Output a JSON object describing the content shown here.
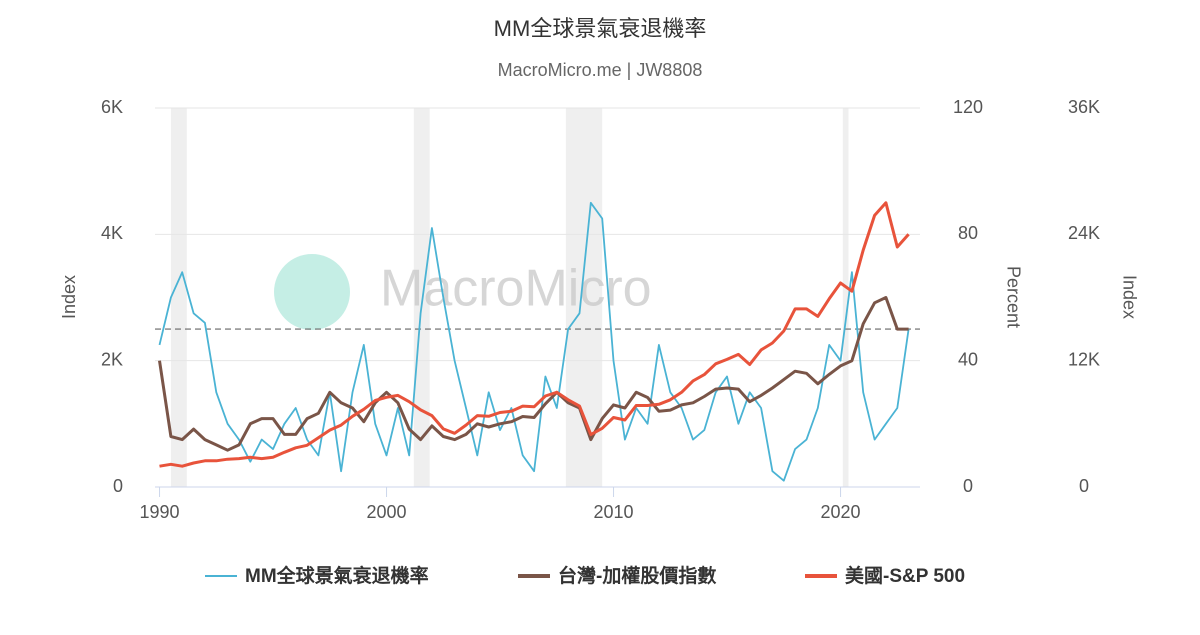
{
  "chart_data": {
    "type": "line",
    "title": "MM全球景氣衰退機率",
    "subtitle": "MacroMicro.me | JW8808",
    "watermark": "MacroMicro",
    "y_label": "Index",
    "y2_label": "Percent",
    "y3_label": "Index",
    "x": [
      1990.0,
      1990.5,
      1991.0,
      1991.5,
      1992.0,
      1992.5,
      1993.0,
      1993.5,
      1994.0,
      1994.5,
      1995.0,
      1995.5,
      1996.0,
      1996.5,
      1997.0,
      1997.5,
      1998.0,
      1998.5,
      1999.0,
      1999.5,
      2000.0,
      2000.5,
      2001.0,
      2001.5,
      2002.0,
      2002.5,
      2003.0,
      2003.5,
      2004.0,
      2004.5,
      2005.0,
      2005.5,
      2006.0,
      2006.5,
      2007.0,
      2007.5,
      2008.0,
      2008.5,
      2009.0,
      2009.5,
      2010.0,
      2010.5,
      2011.0,
      2011.5,
      2012.0,
      2012.5,
      2013.0,
      2013.5,
      2014.0,
      2014.5,
      2015.0,
      2015.5,
      2016.0,
      2016.5,
      2017.0,
      2017.5,
      2018.0,
      2018.5,
      2019.0,
      2019.5,
      2020.0,
      2020.5,
      2021.0,
      2021.5,
      2022.0,
      2022.5,
      2023.0
    ],
    "xlim": [
      1989.8,
      2023.5
    ],
    "xticks": [
      1990,
      2000,
      2010,
      2020
    ],
    "ylim": [
      0,
      6000
    ],
    "yticks": [
      0,
      {
        "value": 2000,
        "label": "2K"
      },
      {
        "value": 4000,
        "label": "4K"
      },
      {
        "value": 6000,
        "label": "6K"
      }
    ],
    "y2lim": [
      0,
      120
    ],
    "y2ticks": [
      0,
      40,
      80,
      120
    ],
    "y3lim": [
      0,
      36000
    ],
    "y3ticks": [
      0,
      {
        "value": 12000,
        "label": "12K"
      },
      {
        "value": 24000,
        "label": "24K"
      },
      {
        "value": 36000,
        "label": "36K"
      }
    ],
    "grid": true,
    "reference_line": 50,
    "shaded_ranges": [
      [
        1990.5,
        1991.2
      ],
      [
        2001.2,
        2001.9
      ],
      [
        2007.9,
        2009.5
      ],
      [
        2020.1,
        2020.35
      ]
    ],
    "series": [
      {
        "name": "MM全球景氣衰退機率",
        "color": "#4ab3d4",
        "axis": "y2",
        "values": [
          45,
          60,
          68,
          55,
          52,
          30,
          20,
          15,
          8,
          15,
          12,
          20,
          25,
          15,
          10,
          30,
          5,
          30,
          45,
          20,
          10,
          25,
          10,
          55,
          82,
          60,
          40,
          25,
          10,
          30,
          18,
          25,
          10,
          5,
          35,
          25,
          50,
          55,
          90,
          85,
          40,
          15,
          25,
          20,
          45,
          30,
          25,
          15,
          18,
          30,
          35,
          20,
          30,
          25,
          5,
          2,
          12,
          15,
          25,
          45,
          40,
          68,
          30,
          15,
          20,
          25,
          50
        ]
      },
      {
        "name": "台灣-加權股價指數",
        "color": "#7a5548",
        "axis": "y3",
        "values": [
          12000,
          4800,
          4500,
          5500,
          4500,
          4000,
          3500,
          4000,
          6000,
          6500,
          6500,
          5000,
          5000,
          6500,
          7000,
          9000,
          8000,
          7500,
          6200,
          8000,
          9000,
          8000,
          5500,
          4500,
          5800,
          4800,
          4500,
          5000,
          6000,
          5700,
          6000,
          6200,
          6700,
          6600,
          7900,
          9000,
          8000,
          7500,
          4500,
          6500,
          7800,
          7500,
          9000,
          8500,
          7200,
          7300,
          7800,
          8000,
          8600,
          9300,
          9400,
          9300,
          8100,
          8700,
          9400,
          10200,
          11000,
          10800,
          9800,
          10700,
          11500,
          12000,
          15500,
          17500,
          18000,
          15000,
          15000
        ]
      },
      {
        "name": "美國-S&P 500",
        "color": "#e8533b",
        "axis": "y",
        "values": [
          330,
          360,
          330,
          380,
          415,
          415,
          440,
          450,
          470,
          450,
          470,
          550,
          620,
          660,
          780,
          900,
          980,
          1120,
          1230,
          1370,
          1420,
          1450,
          1350,
          1220,
          1130,
          920,
          850,
          980,
          1130,
          1120,
          1180,
          1200,
          1280,
          1270,
          1440,
          1500,
          1380,
          1280,
          830,
          930,
          1100,
          1060,
          1290,
          1290,
          1310,
          1380,
          1500,
          1680,
          1780,
          1950,
          2020,
          2100,
          1940,
          2170,
          2280,
          2470,
          2820,
          2820,
          2700,
          2980,
          3230,
          3100,
          3750,
          4300,
          4500,
          3800,
          4000
        ]
      }
    ]
  }
}
